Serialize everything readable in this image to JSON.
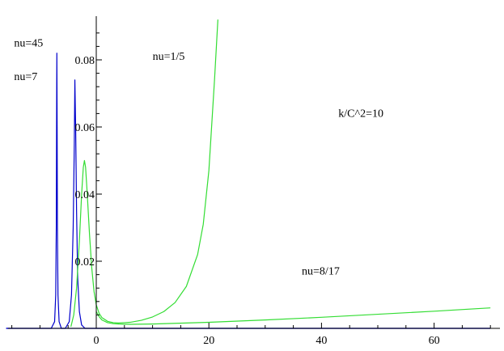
{
  "chart_data": {
    "type": "line",
    "title": "",
    "xlabel": "",
    "ylabel": "",
    "xlim": [
      -16,
      70
    ],
    "ylim": [
      0,
      0.09
    ],
    "grid": false,
    "x_ticks": [
      0,
      20,
      40,
      60
    ],
    "y_ticks": [
      0.02,
      0.04,
      0.06,
      0.08
    ],
    "colors": {
      "blue": "#0000cc",
      "green": "#33dd33",
      "axis": "#000000"
    },
    "annotations": [
      {
        "text": "nu=45",
        "near_x": -14.6,
        "near_y": 0.084
      },
      {
        "text": "nu=7",
        "near_x": -14.6,
        "near_y": 0.074
      },
      {
        "text": "nu=1/5",
        "near_x": 10,
        "near_y": 0.08
      },
      {
        "text": "k/C^2=10",
        "near_x": 43,
        "near_y": 0.063
      },
      {
        "text": "nu=8/17",
        "near_x": 36.5,
        "near_y": 0.016
      }
    ],
    "series": [
      {
        "color": "blue",
        "x": [
          -16,
          -8.0,
          -7.4,
          -7.2,
          -7.1,
          -7.05,
          -7.0,
          -6.95,
          -6.9,
          -6.8,
          -6.6,
          -6.2,
          0,
          70
        ],
        "y": [
          0,
          0,
          0.002,
          0.01,
          0.03,
          0.06,
          0.082,
          0.06,
          0.03,
          0.01,
          0.002,
          0,
          0,
          0
        ]
      },
      {
        "color": "blue",
        "x": [
          -16,
          -5.5,
          -4.8,
          -4.4,
          -4.1,
          -3.9,
          -3.8,
          -3.65,
          -3.5,
          -3.3,
          -3.0,
          -2.6,
          -2.0,
          0,
          70
        ],
        "y": [
          0,
          0,
          0.002,
          0.01,
          0.03,
          0.055,
          0.074,
          0.058,
          0.035,
          0.015,
          0.005,
          0.001,
          0,
          0,
          0
        ]
      },
      {
        "color": "green",
        "x": [
          -4.5,
          -4.0,
          -3.5,
          -3.0,
          -2.6,
          -2.3,
          -2.1,
          -1.9,
          -1.6,
          -1.2,
          -0.8,
          -0.4,
          0,
          0.5,
          1,
          2,
          3,
          4,
          5,
          6,
          8,
          10,
          12,
          14,
          16,
          18,
          19,
          20,
          21,
          21.6
        ],
        "y": [
          0.0005,
          0.004,
          0.012,
          0.026,
          0.04,
          0.048,
          0.05,
          0.048,
          0.04,
          0.028,
          0.018,
          0.011,
          0.007,
          0.0045,
          0.0032,
          0.0021,
          0.0017,
          0.0016,
          0.0017,
          0.0018,
          0.0024,
          0.0034,
          0.005,
          0.0077,
          0.0125,
          0.022,
          0.031,
          0.047,
          0.074,
          0.092
        ]
      },
      {
        "color": "green",
        "x": [
          0,
          0.5,
          1,
          2,
          3,
          4,
          6,
          10,
          20,
          30,
          40,
          50,
          60,
          70
        ],
        "y": [
          0.005,
          0.0035,
          0.0025,
          0.0017,
          0.0014,
          0.0013,
          0.0012,
          0.0013,
          0.0018,
          0.0025,
          0.0033,
          0.0042,
          0.0051,
          0.0061
        ]
      }
    ]
  }
}
